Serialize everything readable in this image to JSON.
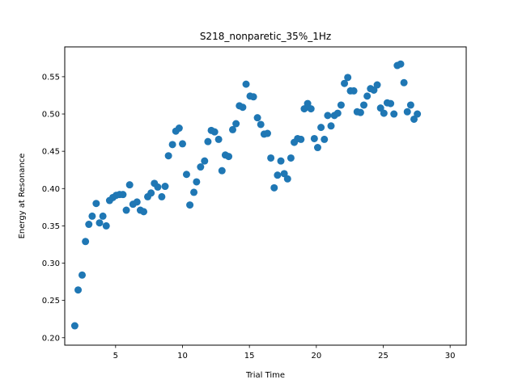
{
  "chart_data": {
    "type": "scatter",
    "title": "S218_nonparetic_35%_1Hz",
    "xlabel": "Trial Time",
    "ylabel": "Energy at Resonance",
    "xlim": [
      1.2,
      31.2
    ],
    "ylim": [
      0.19,
      0.59
    ],
    "xticks": [
      5,
      10,
      15,
      20,
      25,
      30
    ],
    "yticks": [
      0.2,
      0.25,
      0.3,
      0.35,
      0.4,
      0.45,
      0.5,
      0.55
    ],
    "xtick_labels": [
      "5",
      "10",
      "15",
      "20",
      "25",
      "30"
    ],
    "ytick_labels": [
      "0.20",
      "0.25",
      "0.30",
      "0.35",
      "0.40",
      "0.45",
      "0.50",
      "0.55"
    ],
    "grid": false,
    "color": "#1f77b4",
    "points": [
      [
        1.95,
        0.216
      ],
      [
        2.2,
        0.264
      ],
      [
        2.5,
        0.284
      ],
      [
        2.75,
        0.329
      ],
      [
        3.0,
        0.352
      ],
      [
        3.25,
        0.363
      ],
      [
        3.55,
        0.38
      ],
      [
        3.8,
        0.354
      ],
      [
        4.05,
        0.363
      ],
      [
        4.3,
        0.35
      ],
      [
        4.55,
        0.384
      ],
      [
        4.8,
        0.388
      ],
      [
        5.05,
        0.391
      ],
      [
        5.3,
        0.392
      ],
      [
        5.55,
        0.392
      ],
      [
        5.8,
        0.371
      ],
      [
        6.05,
        0.405
      ],
      [
        6.3,
        0.379
      ],
      [
        6.6,
        0.382
      ],
      [
        6.85,
        0.371
      ],
      [
        7.1,
        0.369
      ],
      [
        7.4,
        0.389
      ],
      [
        7.65,
        0.394
      ],
      [
        7.9,
        0.407
      ],
      [
        8.15,
        0.402
      ],
      [
        8.45,
        0.389
      ],
      [
        8.7,
        0.403
      ],
      [
        8.95,
        0.444
      ],
      [
        9.25,
        0.459
      ],
      [
        9.5,
        0.477
      ],
      [
        9.75,
        0.481
      ],
      [
        10.0,
        0.46
      ],
      [
        10.3,
        0.419
      ],
      [
        10.55,
        0.378
      ],
      [
        10.85,
        0.395
      ],
      [
        11.05,
        0.409
      ],
      [
        11.35,
        0.429
      ],
      [
        11.65,
        0.437
      ],
      [
        11.9,
        0.463
      ],
      [
        12.15,
        0.478
      ],
      [
        12.4,
        0.476
      ],
      [
        12.7,
        0.466
      ],
      [
        12.95,
        0.424
      ],
      [
        13.2,
        0.445
      ],
      [
        13.45,
        0.443
      ],
      [
        13.75,
        0.479
      ],
      [
        14.0,
        0.487
      ],
      [
        14.25,
        0.511
      ],
      [
        14.5,
        0.509
      ],
      [
        14.75,
        0.54
      ],
      [
        15.05,
        0.524
      ],
      [
        15.3,
        0.523
      ],
      [
        15.6,
        0.495
      ],
      [
        15.85,
        0.486
      ],
      [
        16.1,
        0.473
      ],
      [
        16.35,
        0.474
      ],
      [
        16.6,
        0.441
      ],
      [
        16.85,
        0.401
      ],
      [
        17.1,
        0.418
      ],
      [
        17.35,
        0.437
      ],
      [
        17.6,
        0.42
      ],
      [
        17.85,
        0.413
      ],
      [
        18.1,
        0.441
      ],
      [
        18.35,
        0.462
      ],
      [
        18.6,
        0.467
      ],
      [
        18.85,
        0.466
      ],
      [
        19.1,
        0.507
      ],
      [
        19.35,
        0.514
      ],
      [
        19.6,
        0.507
      ],
      [
        19.85,
        0.467
      ],
      [
        20.1,
        0.455
      ],
      [
        20.35,
        0.482
      ],
      [
        20.6,
        0.466
      ],
      [
        20.85,
        0.498
      ],
      [
        21.1,
        0.484
      ],
      [
        21.35,
        0.498
      ],
      [
        21.6,
        0.501
      ],
      [
        21.85,
        0.512
      ],
      [
        22.1,
        0.541
      ],
      [
        22.35,
        0.549
      ],
      [
        22.55,
        0.531
      ],
      [
        22.8,
        0.531
      ],
      [
        23.05,
        0.503
      ],
      [
        23.3,
        0.502
      ],
      [
        23.55,
        0.512
      ],
      [
        23.8,
        0.524
      ],
      [
        24.05,
        0.534
      ],
      [
        24.3,
        0.532
      ],
      [
        24.55,
        0.539
      ],
      [
        24.8,
        0.508
      ],
      [
        25.05,
        0.501
      ],
      [
        25.3,
        0.515
      ],
      [
        25.55,
        0.514
      ],
      [
        25.8,
        0.5
      ],
      [
        26.05,
        0.565
      ],
      [
        26.3,
        0.567
      ],
      [
        26.55,
        0.542
      ],
      [
        26.8,
        0.503
      ],
      [
        27.05,
        0.512
      ],
      [
        27.3,
        0.493
      ],
      [
        27.55,
        0.5
      ]
    ]
  }
}
